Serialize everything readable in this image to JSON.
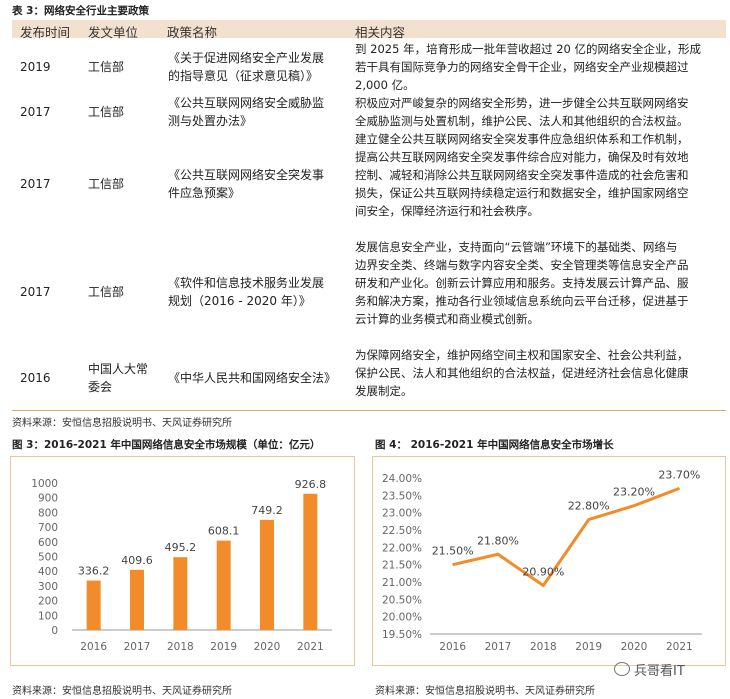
{
  "table": {
    "title": "表 3：网络安全行业主要政策",
    "headers": [
      "发布时间",
      "发文单位",
      "政策名称",
      "相关内容"
    ],
    "rows": [
      {
        "year": "2019",
        "unit": "工信部",
        "name": [
          "《关于促进网络安全产业发展",
          "的指导意见（征求意见稿）》"
        ],
        "content": [
          "到 2025 年，培育形成一批年营收超过 20 亿的网络安全企业，形成",
          "若干具有国际竞争力的网络安全骨干企业，网络安全产业规模超过",
          "2,000 亿。"
        ]
      },
      {
        "year": "2017",
        "unit": "工信部",
        "name": [
          "《公共互联网网络安全威胁监",
          "测与处置办法》"
        ],
        "content": [
          "积极应对严峻复杂的网络安全形势，进一步健全公共互联网网络安",
          "全威胁监测与处置机制，维护公民、法人和其他组织的合法权益。"
        ]
      },
      {
        "year": "2017",
        "unit": "工信部",
        "name": [
          "《公共互联网网络安全突发事",
          "件应急预案》"
        ],
        "content": [
          "建立健全公共互联网网络安全突发事件应急组织体系和工作机制，",
          "提高公共互联网网络安全突发事件综合应对能力，确保及时有效地",
          "控制、减轻和消除公共互联网网络安全突发事件造成的社会危害和",
          "损失，保证公共互联网持续稳定运行和数据安全，维护国家网络空",
          "间安全，保障经济运行和社会秩序。"
        ]
      },
      {
        "year": "2017",
        "unit": "工信部",
        "name": [
          "《软件和信息技术服务业发展",
          "规划（2016 - 2020 年）》"
        ],
        "content": [
          "发展信息安全产业，支持面向“云管端”环境下的基础类、网络与",
          "边界安全类、终端与数字内容安全类、安全管理类等信息安全产品",
          "研发和产业化。创新云计算应用和服务。支持发展云计算产品、服",
          "务和解决方案，推动各行业领域信息系统向云平台迁移，促进基于",
          "云计算的业务模式和商业模式创新。"
        ]
      },
      {
        "year": "2016",
        "unit": "中国人大常委会",
        "name": [
          "《中华人民共和国网络安全法》"
        ],
        "content": [
          "为保障网络安全，维护网络空间主权和国家安全、社会公共利益，",
          "保护公民、法人和其他组织的合法权益，促进经济社会信息化健康",
          "发展制定。"
        ]
      }
    ],
    "source": "资料来源：安恒信息招股说明书、天风证券研究所"
  },
  "chart_data": [
    {
      "type": "bar",
      "title": "图 3：2016-2021 年中国网络信息安全市场规模（单位：亿元）",
      "categories": [
        "2016",
        "2017",
        "2018",
        "2019",
        "2020",
        "2021"
      ],
      "values": [
        336.2,
        409.6,
        495.2,
        608.1,
        749.2,
        926.8
      ],
      "value_labels": [
        "336.2",
        "409.6",
        "495.2",
        "608.1",
        "749.2",
        "926.8"
      ],
      "yticks": [
        "0",
        "100",
        "200",
        "300",
        "400",
        "500",
        "600",
        "700",
        "800",
        "900",
        "1000"
      ],
      "ylim": [
        0,
        1000
      ],
      "color": "#f28b2a",
      "grid": false,
      "source": "资料来源：安恒信息招股说明书、天风证券研究所"
    },
    {
      "type": "line",
      "title": "图 4：  2016-2021 年中国网络信息安全市场增长",
      "categories": [
        "2016",
        "2017",
        "2018",
        "2019",
        "2020",
        "2021"
      ],
      "values": [
        21.5,
        21.8,
        20.9,
        22.8,
        23.2,
        23.7
      ],
      "value_labels": [
        "21.50%",
        "21.80%",
        "20.90%",
        "22.80%",
        "23.20%",
        "23.70%"
      ],
      "yticks": [
        "19.50%",
        "20.00%",
        "20.50%",
        "21.00%",
        "21.50%",
        "22.00%",
        "22.50%",
        "23.00%",
        "23.50%",
        "24.00%"
      ],
      "ylim": [
        19.5,
        24.0
      ],
      "color": "#f28b2a",
      "grid": false,
      "source": "资料来源：安恒信息招股说明书、天风证券研究所"
    }
  ],
  "watermark": "兵哥看IT"
}
